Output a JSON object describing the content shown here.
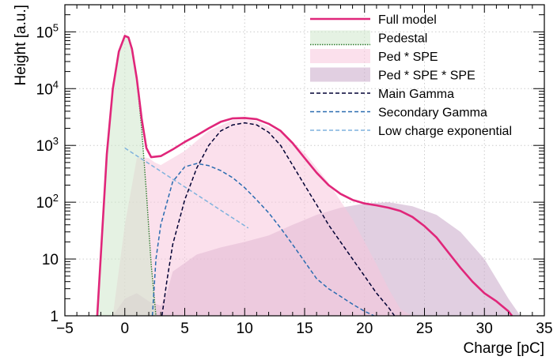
{
  "chart_data": {
    "type": "area",
    "xlabel": "Charge [pC]",
    "ylabel": "Height [a.u.]",
    "xlim": [
      -5,
      35
    ],
    "ylim": [
      1,
      300000
    ],
    "yscale": "log",
    "grid": true,
    "legend_position": "top-right",
    "xticks": [
      -5,
      0,
      5,
      10,
      15,
      20,
      25,
      30,
      35
    ],
    "xtick_labels": [
      "−5",
      "0",
      "5",
      "10",
      "15",
      "20",
      "25",
      "30",
      "35"
    ],
    "yticks": [
      {
        "value": 1,
        "label": "1"
      },
      {
        "value": 10,
        "label": "10"
      },
      {
        "value": 100,
        "label": "10^2"
      },
      {
        "value": 1000,
        "label": "10^3"
      },
      {
        "value": 10000,
        "label": "10^4"
      },
      {
        "value": 100000,
        "label": "10^5"
      }
    ],
    "series": [
      {
        "name": "Ped * SPE * SPE",
        "kind": "fill",
        "color": "#c8a8c8",
        "x": [
          -1.0,
          0.0,
          1.0,
          2.0,
          3.0,
          3.5,
          4.0,
          6.0,
          8.0,
          10.0,
          12.0,
          14.0,
          16.0,
          18.0,
          20.0,
          22.0,
          24.0,
          26.0,
          28.0,
          30.0,
          32.0,
          33.0
        ],
        "y": [
          1,
          2,
          2.5,
          1.8,
          1.5,
          2.5,
          6,
          12,
          16,
          20,
          26,
          40,
          60,
          80,
          95,
          100,
          85,
          60,
          30,
          10,
          2,
          1
        ]
      },
      {
        "name": "Ped * SPE",
        "kind": "fill",
        "color": "#f7c6dc",
        "x": [
          -1.0,
          0.0,
          1.0,
          1.5,
          2.0,
          2.5,
          3.0,
          5.0,
          7.0,
          9.0,
          10.0,
          11.0,
          13.0,
          15.0,
          17.0,
          19.0,
          21.0,
          22.0,
          23.0,
          24.0
        ],
        "y": [
          1,
          40,
          600,
          620,
          600,
          500,
          450,
          800,
          1800,
          2800,
          2900,
          2700,
          1700,
          750,
          220,
          50,
          8,
          3,
          1.3,
          1
        ]
      },
      {
        "name": "Pedestal",
        "kind": "fill",
        "color": "#cfe8cc",
        "line_color": "#2e7d2e",
        "x": [
          -2.3,
          -1.5,
          -1.0,
          -0.5,
          0.0,
          0.3,
          0.6,
          1.0,
          1.4,
          1.8,
          2.2,
          2.6
        ],
        "y": [
          1,
          700,
          10000,
          45000,
          85000,
          80000,
          50000,
          15000,
          2000,
          150,
          8,
          1
        ]
      },
      {
        "name": "Low charge exponential",
        "kind": "line",
        "dash": "5,3",
        "color": "#7fb2dd",
        "x": [
          0.0,
          10.3
        ],
        "y": [
          900,
          35
        ]
      },
      {
        "name": "Secondary Gamma",
        "kind": "line",
        "dash": "5,3",
        "color": "#2a6cb0",
        "x": [
          2.3,
          2.6,
          3.0,
          4.0,
          5.0,
          6.0,
          7.0,
          8.0,
          9.0,
          10.0,
          11.0,
          12.0,
          13.0,
          14.0,
          15.0,
          16.0,
          17.0,
          18.0,
          19.0,
          20.0,
          20.8
        ],
        "y": [
          1,
          10,
          40,
          230,
          420,
          480,
          440,
          360,
          270,
          180,
          110,
          65,
          35,
          18,
          9,
          4.5,
          3,
          2.2,
          1.6,
          1.2,
          1
        ]
      },
      {
        "name": "Main Gamma",
        "kind": "line",
        "dash": "5,3",
        "color": "#000033",
        "x": [
          3.1,
          3.5,
          4.0,
          5.0,
          6.0,
          7.0,
          8.0,
          9.0,
          10.0,
          11.0,
          12.0,
          13.0,
          14.0,
          15.0,
          16.0,
          17.0,
          18.0,
          19.0,
          20.0,
          21.0,
          22.0,
          22.5
        ],
        "y": [
          1,
          4,
          18,
          110,
          400,
          1000,
          1800,
          2300,
          2500,
          2300,
          1700,
          1000,
          450,
          200,
          90,
          40,
          20,
          10,
          5,
          2.5,
          1.4,
          1
        ]
      },
      {
        "name": "Full model",
        "kind": "line",
        "color": "#e0267a",
        "x": [
          -2.3,
          -1.5,
          -1.0,
          -0.5,
          0.0,
          0.3,
          0.6,
          1.0,
          1.4,
          1.8,
          2.2,
          3.0,
          4.0,
          5.0,
          6.0,
          7.0,
          8.0,
          9.0,
          10.0,
          11.0,
          12.0,
          13.0,
          14.0,
          15.0,
          16.0,
          17.0,
          18.0,
          19.0,
          20.0,
          21.0,
          22.0,
          23.0,
          24.0,
          25.0,
          26.0,
          27.0,
          28.0,
          29.0,
          30.0,
          31.0,
          32.0,
          32.3
        ],
        "y": [
          1,
          700,
          10000,
          45000,
          85000,
          80000,
          50000,
          15000,
          3000,
          900,
          620,
          650,
          850,
          1150,
          1500,
          2000,
          2600,
          3000,
          3050,
          2900,
          2400,
          1800,
          1100,
          600,
          330,
          200,
          140,
          110,
          95,
          88,
          80,
          70,
          55,
          38,
          24,
          13,
          7,
          4,
          2.5,
          1.8,
          1.2,
          1
        ]
      }
    ],
    "legend": [
      {
        "name": "Full model",
        "symbol": "line",
        "color": "#e0267a"
      },
      {
        "name": "Pedestal",
        "symbol": "fill",
        "color": "#cfe8cc",
        "line_color": "#2e7d2e"
      },
      {
        "name": "Ped * SPE",
        "symbol": "fill",
        "color": "#f7c6dc"
      },
      {
        "name": "Ped * SPE * SPE",
        "symbol": "fill",
        "color": "#c8a8c8"
      },
      {
        "name": "Main Gamma",
        "symbol": "dash",
        "color": "#000033"
      },
      {
        "name": "Secondary Gamma",
        "symbol": "dash",
        "color": "#2a6cb0"
      },
      {
        "name": "Low charge exponential",
        "symbol": "dash",
        "color": "#7fb2dd"
      }
    ]
  }
}
